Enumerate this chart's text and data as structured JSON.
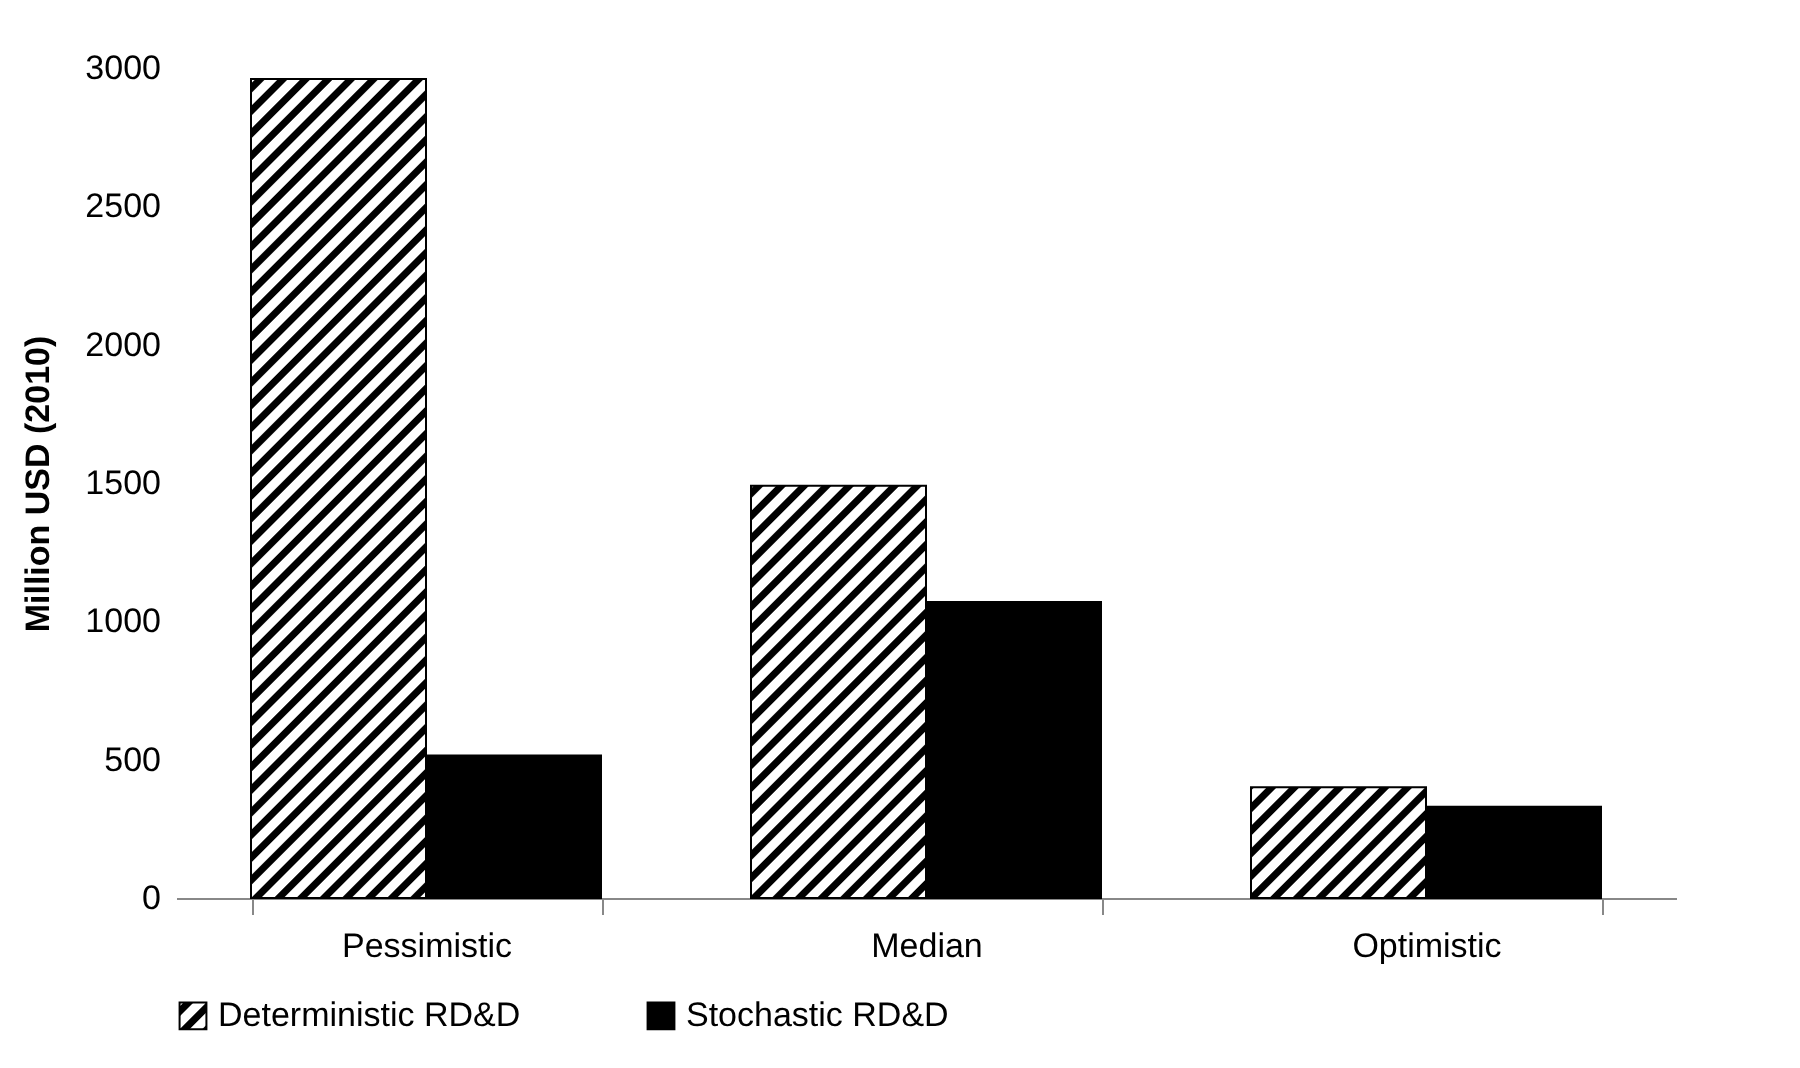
{
  "chart_data": {
    "type": "bar",
    "ylabel": "Million USD (2010)",
    "categories": [
      "Pessimistic",
      "Median",
      "Optimistic"
    ],
    "series": [
      {
        "name": "Deterministic RD&D",
        "color": "#000000",
        "values": [
          2960,
          1490,
          400
        ]
      },
      {
        "name": "Stochastic RD&D",
        "color": "#000000",
        "values": [
          515,
          1070,
          330
        ]
      }
    ],
    "ylim": [
      0,
      3000
    ],
    "yticks": [
      0,
      500,
      1000,
      1500,
      2000,
      2500,
      3000
    ],
    "grid": false,
    "legend": "bottom"
  }
}
